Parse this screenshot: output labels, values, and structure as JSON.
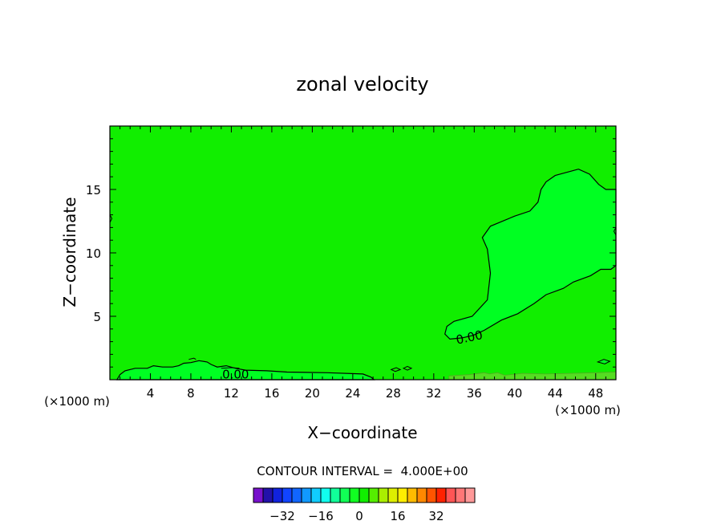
{
  "chart_data": {
    "type": "contour",
    "title": "zonal velocity",
    "xlabel": "X−coordinate",
    "ylabel": "Z−coordinate",
    "xunit_left": "(×1000 m)",
    "xunit_right": "(×1000 m)",
    "xlim": [
      0,
      50
    ],
    "ylim": [
      0,
      20
    ],
    "xticks": [
      4,
      8,
      12,
      16,
      20,
      24,
      28,
      32,
      36,
      40,
      44,
      48
    ],
    "xtick_labels": [
      "4",
      "8",
      "12",
      "16",
      "20",
      "24",
      "28",
      "32",
      "36",
      "40",
      "44",
      "48"
    ],
    "yticks": [
      5,
      10,
      15
    ],
    "ytick_labels": [
      "5",
      "10",
      "15"
    ],
    "contour_interval_text": "CONTOUR INTERVAL =  4.000E+00",
    "contour_labels": [
      "0.00",
      "0.00"
    ],
    "background_fill_color": "#11ee00",
    "region_fill_color": "#00ff22",
    "surface_fill_color": "#55dd22",
    "colorbar": {
      "colors": [
        "#7711cc",
        "#2211aa",
        "#1122dd",
        "#1144ff",
        "#1166ff",
        "#1199ff",
        "#11ccff",
        "#11ffee",
        "#11ff99",
        "#11ff55",
        "#11ff22",
        "#11ee00",
        "#55ee00",
        "#aaee00",
        "#ddee00",
        "#ffee00",
        "#ffbb00",
        "#ff8800",
        "#ff5500",
        "#ff2200",
        "#ff5555",
        "#ff7777",
        "#ff9999"
      ],
      "tick_values": [
        -32,
        -16,
        0,
        16,
        32
      ],
      "tick_labels": [
        "−32",
        "−16",
        "0",
        "16",
        "32"
      ]
    }
  }
}
